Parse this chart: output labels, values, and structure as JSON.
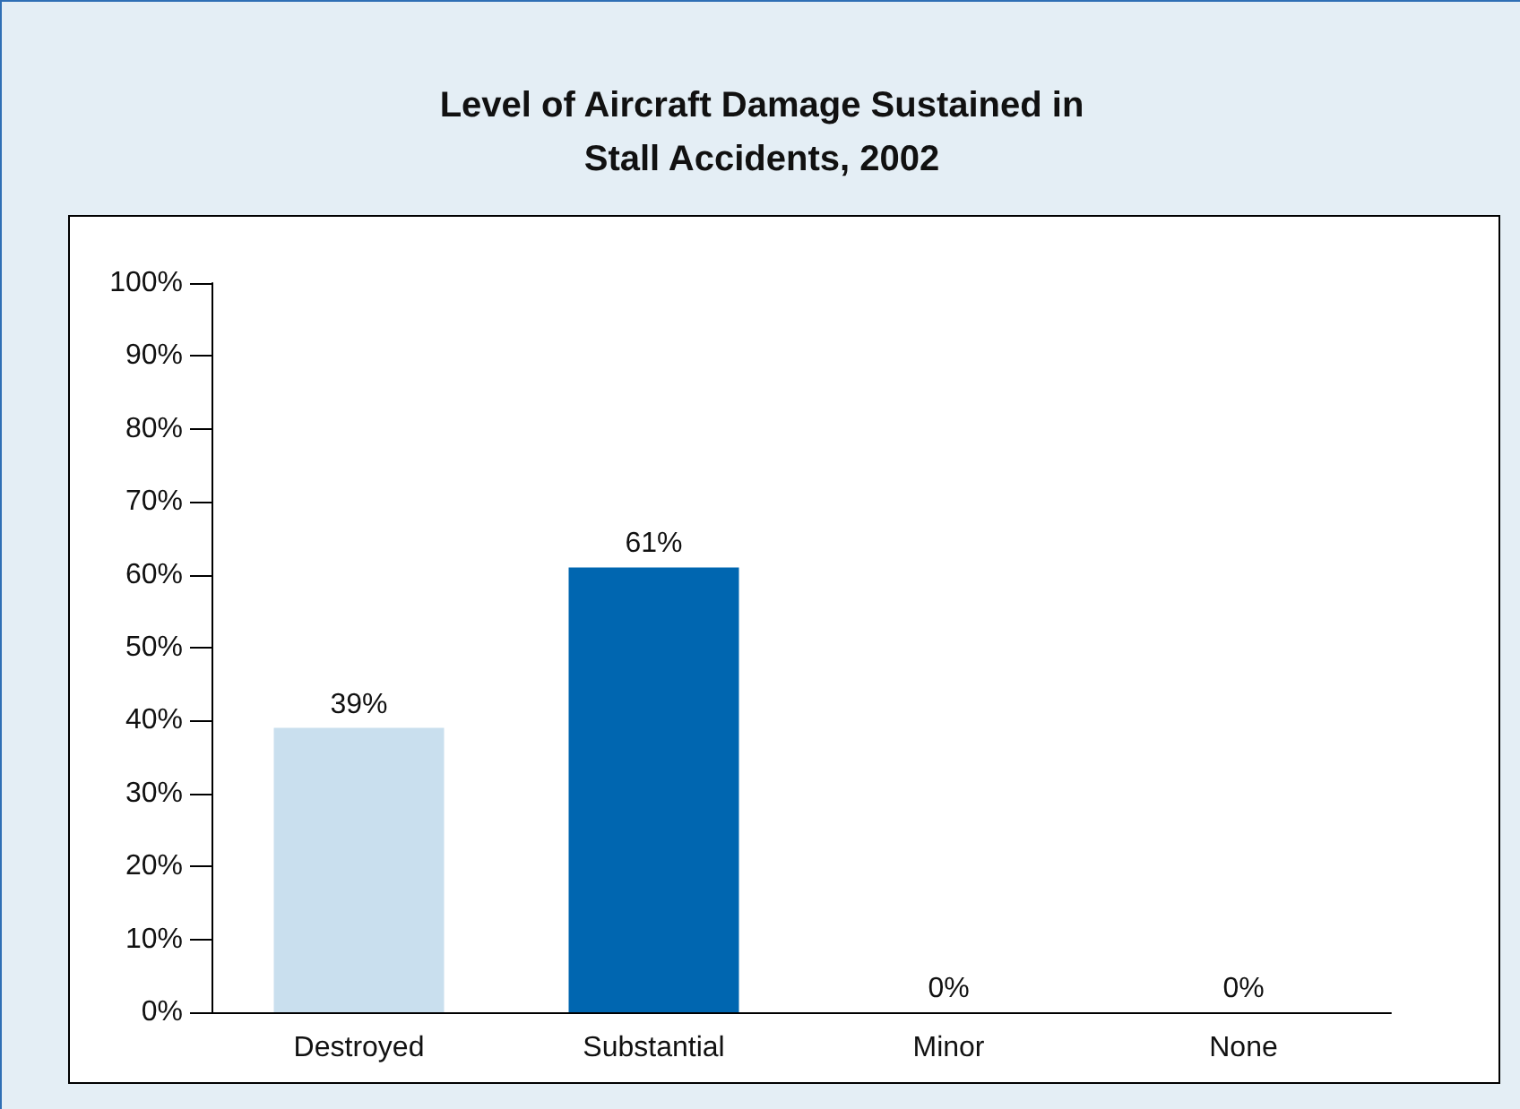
{
  "chart_data": {
    "type": "bar",
    "title": "Level of Aircraft Damage Sustained in\nStall Accidents, 2002",
    "categories": [
      "Destroyed",
      "Substantial",
      "Minor",
      "None"
    ],
    "values": [
      39,
      61,
      0,
      0
    ],
    "colors": [
      "#c9dfee",
      "#0066b0",
      "#0066b0",
      "#0066b0"
    ],
    "value_labels": [
      "39%",
      "61%",
      "0%",
      "0%"
    ],
    "ylim": [
      0,
      100
    ],
    "yticks": [
      {
        "value": 0,
        "label": "0%"
      },
      {
        "value": 10,
        "label": "10%"
      },
      {
        "value": 20,
        "label": "20%"
      },
      {
        "value": 30,
        "label": "30%"
      },
      {
        "value": 40,
        "label": "40%"
      },
      {
        "value": 50,
        "label": "50%"
      },
      {
        "value": 60,
        "label": "60%"
      },
      {
        "value": 70,
        "label": "70%"
      },
      {
        "value": 80,
        "label": "80%"
      },
      {
        "value": 90,
        "label": "90%"
      },
      {
        "value": 100,
        "label": "100%"
      }
    ],
    "grid": false
  }
}
